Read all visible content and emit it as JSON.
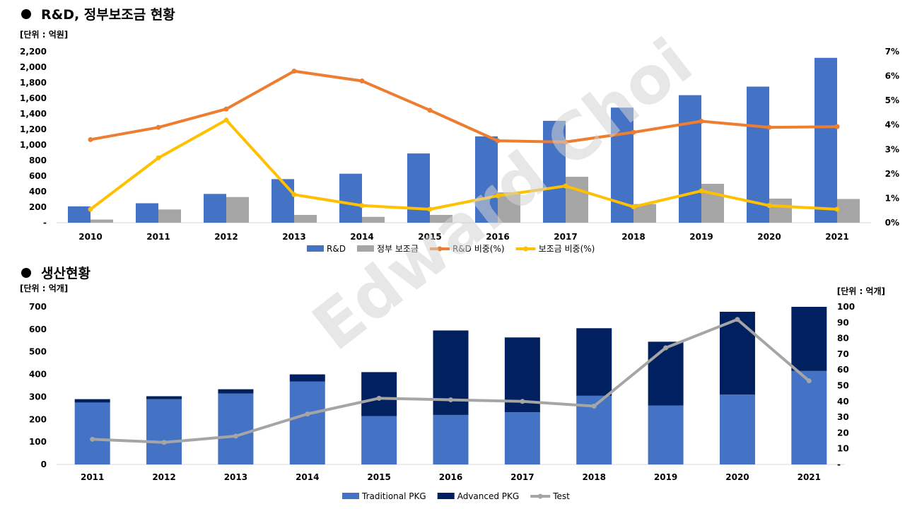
{
  "chart_data": [
    {
      "type": "bar+line",
      "title": "R&D, 정부보조금 현황",
      "unit_left": "[단위 : 억원]",
      "categories": [
        "2010",
        "2011",
        "2012",
        "2013",
        "2014",
        "2015",
        "2016",
        "2017",
        "2018",
        "2019",
        "2020",
        "2021"
      ],
      "y_left_ticks": [
        "-",
        "200",
        "400",
        "600",
        "800",
        "1,000",
        "1,200",
        "1,400",
        "1,600",
        "1,800",
        "2,000",
        "2,200"
      ],
      "y_right_ticks": [
        "0%",
        "1%",
        "2%",
        "3%",
        "4%",
        "5%",
        "6%",
        "7%"
      ],
      "ylim_left": [
        0,
        2200
      ],
      "ylim_right": [
        0,
        7
      ],
      "series": [
        {
          "name": "R&D",
          "kind": "bar",
          "color": "#4472c4",
          "values": [
            210,
            250,
            370,
            560,
            630,
            890,
            1110,
            1310,
            1480,
            1640,
            1750,
            2120
          ]
        },
        {
          "name": "정부 보조금",
          "kind": "bar",
          "color": "#a5a5a5",
          "values": [
            40,
            170,
            330,
            100,
            75,
            100,
            390,
            590,
            240,
            500,
            310,
            305
          ]
        },
        {
          "name": "R&D 비중(%)",
          "kind": "line",
          "axis": "right",
          "color": "#ed7d31",
          "values": [
            3.4,
            3.9,
            4.65,
            6.2,
            5.8,
            4.6,
            3.35,
            3.3,
            3.7,
            4.15,
            3.9,
            3.93
          ]
        },
        {
          "name": "보조금 비중(%)",
          "kind": "line",
          "axis": "right",
          "color": "#ffc000",
          "values": [
            0.55,
            2.65,
            4.2,
            1.15,
            0.7,
            0.55,
            1.1,
            1.5,
            0.65,
            1.3,
            0.7,
            0.55
          ]
        }
      ]
    },
    {
      "type": "stacked-bar+line",
      "title": "생산현황",
      "unit_left": "[단위 : 억개]",
      "unit_right": "[단위 : 억개]",
      "categories": [
        "2011",
        "2012",
        "2013",
        "2014",
        "2015",
        "2016",
        "2017",
        "2018",
        "2019",
        "2020",
        "2021"
      ],
      "y_left_ticks": [
        "0",
        "100",
        "200",
        "300",
        "400",
        "500",
        "600",
        "700"
      ],
      "y_right_ticks": [
        "-",
        "10",
        "20",
        "30",
        "40",
        "50",
        "60",
        "70",
        "80",
        "90",
        "100"
      ],
      "ylim_left": [
        0,
        700
      ],
      "ylim_right": [
        0,
        100
      ],
      "series": [
        {
          "name": "Traditional PKG",
          "kind": "bar",
          "color": "#4472c4",
          "values": [
            275,
            290,
            315,
            368,
            215,
            220,
            232,
            305,
            262,
            310,
            415
          ]
        },
        {
          "name": "Advanced PKG",
          "kind": "bar",
          "color": "#002060",
          "values": [
            15,
            13,
            19,
            32,
            195,
            375,
            332,
            300,
            283,
            368,
            285
          ]
        },
        {
          "name": "Test",
          "kind": "line",
          "axis": "right",
          "color": "#a5a5a5",
          "values": [
            16,
            14,
            18,
            32,
            42,
            41,
            40,
            37,
            74,
            92,
            53
          ]
        }
      ]
    }
  ],
  "watermark": "Edward Choi"
}
